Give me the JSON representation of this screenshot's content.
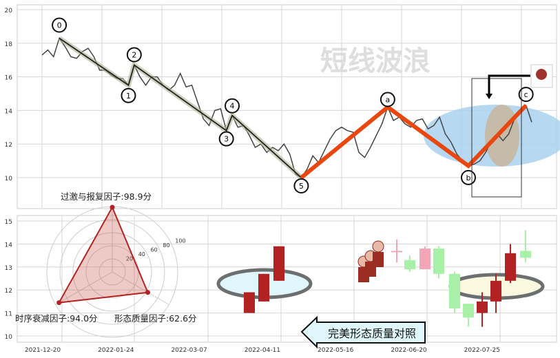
{
  "watermark": "短线波浪",
  "chart_data": [
    {
      "type": "line",
      "panel": "top",
      "yticks": [
        10,
        12,
        14,
        16,
        18,
        20
      ],
      "ylim": [
        9,
        20.4
      ],
      "grid": true,
      "close": [
        17.3,
        17.6,
        17.2,
        18.3,
        17.8,
        17.2,
        17.1,
        17.5,
        17.7,
        17.2,
        16.4,
        16.4,
        16.1,
        15.9,
        15.9,
        15.5,
        16.7,
        16.0,
        15.5,
        16.0,
        16.0,
        15.5,
        15.2,
        15.5,
        16.2,
        15.4,
        15.5,
        14.5,
        13.5,
        13.1,
        14.0,
        14.1,
        12.8,
        13.7,
        13.0,
        13.1,
        12.5,
        11.8,
        12.0,
        11.5,
        11.8,
        11.6,
        12.0,
        11.4,
        10.2,
        10.0,
        10.5,
        11.3,
        10.9,
        11.6,
        12.3,
        12.8,
        13.0,
        12.8,
        12.7,
        11.5,
        11.2,
        11.8,
        12.5,
        13.2,
        14.2,
        13.4,
        13.6,
        13.2,
        13.0,
        13.4,
        13.5,
        12.9,
        13.1,
        13.6,
        12.6,
        12.1,
        11.4,
        11.0,
        10.7,
        10.8,
        11.0,
        11.5,
        12.2,
        12.6,
        12.2,
        12.6,
        13.5,
        14.0,
        14.3,
        13.3
      ],
      "waves": [
        {
          "label": "0",
          "index": 3,
          "price": 18.3
        },
        {
          "label": "1",
          "index": 15,
          "price": 15.5
        },
        {
          "label": "2",
          "index": 16,
          "price": 16.7
        },
        {
          "label": "3",
          "index": 32,
          "price": 12.8
        },
        {
          "label": "4",
          "index": 33,
          "price": 13.7
        },
        {
          "label": "5",
          "index": 45,
          "price": 10.0
        },
        {
          "label": "a",
          "index": 60,
          "price": 14.2
        },
        {
          "label": "b",
          "index": 74,
          "price": 10.7
        },
        {
          "label": "c",
          "index": 84,
          "price": 14.3
        }
      ],
      "impulse_color": "#222222",
      "correction_color": "#e8470f"
    },
    {
      "type": "candlestick",
      "panel": "bottom",
      "yticks": [
        10,
        11,
        12,
        13,
        14,
        15
      ],
      "ylim": [
        9.7,
        15.3
      ],
      "xticks": [
        "2021-12-20",
        "2022-01-24",
        "2022-03-07",
        "2022-04-11",
        "2022-05-16",
        "2022-06-20",
        "2022-07-25"
      ],
      "grid": true,
      "candles": [
        {
          "o": 11.0,
          "h": 11.9,
          "l": 11.0,
          "c": 11.9,
          "color": "#b22222"
        },
        {
          "o": 11.5,
          "h": 12.7,
          "l": 11.5,
          "c": 12.7,
          "color": "#b22222"
        },
        {
          "o": 12.4,
          "h": 13.9,
          "l": 12.4,
          "c": 13.9,
          "color": "#b22222"
        },
        {
          "o": 13.7,
          "h": 14.2,
          "l": 13.2,
          "c": 13.65,
          "color": "#f4a6b6"
        },
        {
          "o": 13.3,
          "h": 13.5,
          "l": 12.8,
          "c": 12.9,
          "color": "#a8f0a8"
        },
        {
          "o": 12.9,
          "h": 13.9,
          "l": 12.9,
          "c": 13.8,
          "color": "#f4a6b6"
        },
        {
          "o": 13.8,
          "h": 13.9,
          "l": 12.5,
          "c": 12.7,
          "color": "#a8f0a8"
        },
        {
          "o": 12.7,
          "h": 12.8,
          "l": 11.0,
          "c": 11.2,
          "color": "#a8f0a8"
        },
        {
          "o": 11.4,
          "h": 11.4,
          "l": 10.4,
          "c": 10.8,
          "color": "#a8f0a8"
        },
        {
          "o": 11.0,
          "h": 11.9,
          "l": 10.4,
          "c": 11.5,
          "color": "#b22222"
        },
        {
          "o": 11.5,
          "h": 12.7,
          "l": 11.0,
          "c": 12.4,
          "color": "#b22222"
        },
        {
          "o": 12.4,
          "h": 14.0,
          "l": 12.3,
          "c": 13.6,
          "color": "#b22222"
        },
        {
          "o": 13.7,
          "h": 14.6,
          "l": 13.2,
          "c": 13.4,
          "color": "#a8f0a8"
        }
      ]
    },
    {
      "type": "radar",
      "rings": [
        "20",
        "40",
        "60",
        "80",
        "100"
      ],
      "axes": [
        {
          "label": "过激与报复因子:98.9分",
          "value": 98.9
        },
        {
          "label": "形态质量因子:62.6分",
          "value": 62.6
        },
        {
          "label": "时序衰减因子:94.0分",
          "value": 94.0
        }
      ],
      "color": "#b22222"
    }
  ],
  "callout": "完美形态质量对照"
}
